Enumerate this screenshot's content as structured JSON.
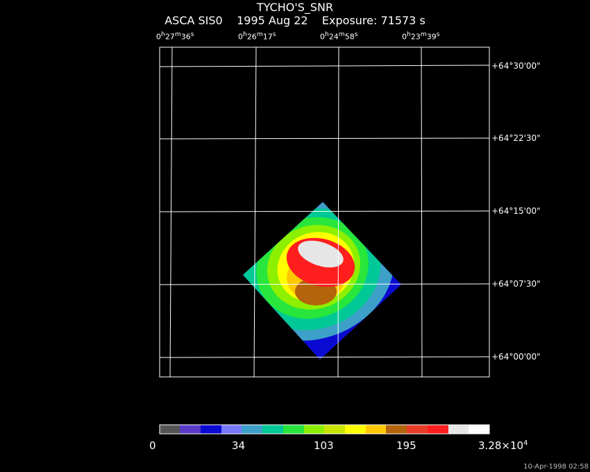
{
  "header": {
    "target": "TYCHO'S_SNR",
    "subtitle": "ASCA SIS0    1995 Aug 22    Exposure: 71573 s"
  },
  "ra_labels": [
    {
      "h": "0",
      "m": "27",
      "s": "36"
    },
    {
      "h": "0",
      "m": "26",
      "s": "17"
    },
    {
      "h": "0",
      "m": "24",
      "s": "58"
    },
    {
      "h": "0",
      "m": "23",
      "s": "39"
    }
  ],
  "dec_labels": [
    "+64°30'00\"",
    "+64°22'30\"",
    "+64°15'00\"",
    "+64°07'30\"",
    "+64°00'00\""
  ],
  "colorbar": {
    "colors": [
      "#555555",
      "#5a3cc8",
      "#0a0ad2",
      "#7878ff",
      "#3ca0c8",
      "#00c896",
      "#28e63c",
      "#8cf000",
      "#c8e600",
      "#ffff00",
      "#ffc800",
      "#b4640a",
      "#e63c28",
      "#ff1e1e",
      "#e6e6e6",
      "#ffffff"
    ],
    "labels": [
      "0",
      "34",
      "103",
      "195",
      "3.28×10"
    ],
    "label_exponent": "4"
  },
  "timestamp": "10-Apr-1998 02:58"
}
